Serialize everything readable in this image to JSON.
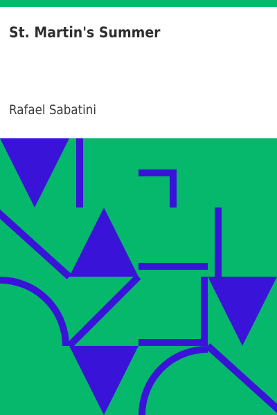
{
  "book": {
    "title": "St. Martin's Summer",
    "author": "Rafael Sabatini"
  },
  "colors": {
    "background": "#05b86c",
    "shapes": "#3a13d8",
    "title_area": "#ffffff",
    "title_text": "#2e2e2e",
    "author_text": "#3a3a3a"
  }
}
